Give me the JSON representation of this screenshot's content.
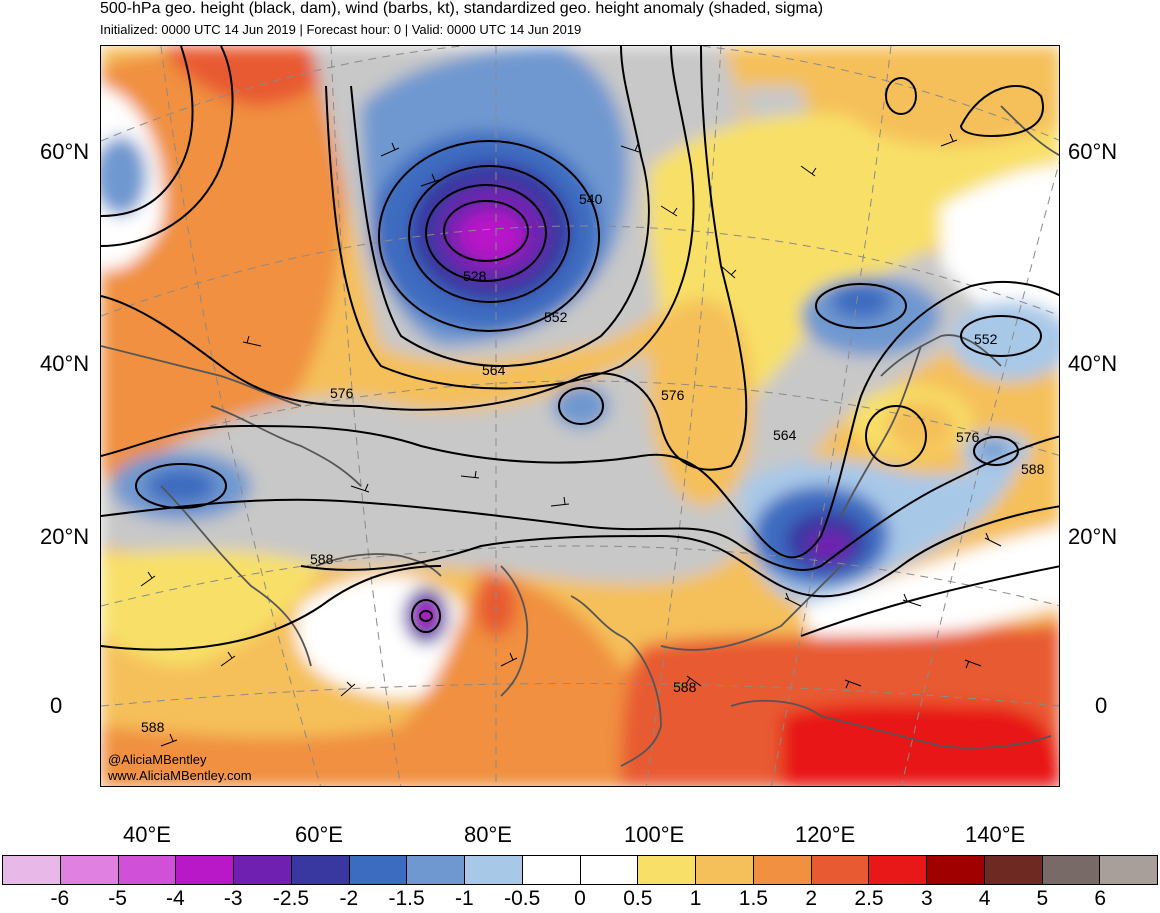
{
  "title": "500-hPa geo. height (black, dam), wind (barbs, kt), standardized geo. height anomaly (shaded, sigma)",
  "subtitle": "Initialized: 0000 UTC 14 Jun 2019 | Forecast hour: 0 | Valid: 0000 UTC 14 Jun 2019",
  "lat_labels": [
    "60°N",
    "40°N",
    "20°N",
    "0"
  ],
  "lon_labels": [
    "40°E",
    "60°E",
    "80°E",
    "100°E",
    "120°E",
    "140°E"
  ],
  "contour_labels": [
    "540",
    "528",
    "552",
    "564",
    "576",
    "576",
    "564",
    "552",
    "576",
    "588",
    "588",
    "588",
    "588"
  ],
  "credits": [
    "@AliciaMBentley",
    "www.AliciaMBentley.com"
  ],
  "legend": {
    "colors": [
      "#e8b8e8",
      "#e080e0",
      "#d050d8",
      "#b818c8",
      "#7020b0",
      "#3838a0",
      "#3c6cc0",
      "#6f98d0",
      "#a8c8e8",
      "#ffffff",
      "#ffffff",
      "#f8e068",
      "#f5c05a",
      "#f09040",
      "#e85a32",
      "#e81818",
      "#a00000",
      "#6e2a22",
      "#786a66",
      "#a89e9a"
    ],
    "labels": [
      "-6",
      "-5",
      "-4",
      "-3",
      "-2.5",
      "-2",
      "-1.5",
      "-1",
      "-0.5",
      "0",
      "0.5",
      "1",
      "1.5",
      "2",
      "2.5",
      "3",
      "4",
      "5",
      "6"
    ]
  }
}
